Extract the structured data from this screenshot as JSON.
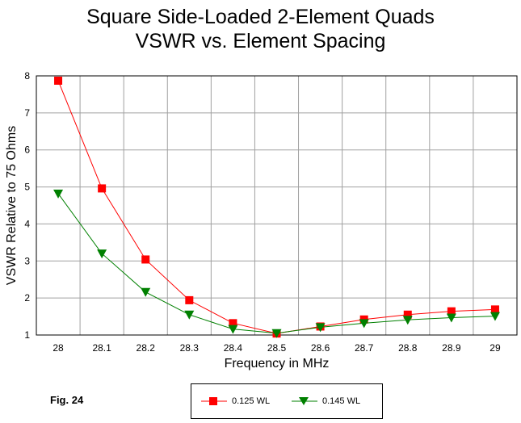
{
  "title": "Square Side-Loaded 2-Element Quads",
  "subtitle": "VSWR vs. Element Spacing",
  "figure_label": "Fig. 24",
  "chart_data": {
    "type": "line",
    "title": "Square Side-Loaded 2-Element Quads",
    "subtitle": "VSWR vs. Element Spacing",
    "xlabel": "Frequency in MHz",
    "ylabel": "VSWR Relative to 75 Ohms",
    "categories": [
      "28",
      "28.1",
      "28.2",
      "28.3",
      "28.4",
      "28.5",
      "28.6",
      "28.7",
      "28.8",
      "28.9",
      "29"
    ],
    "ylim": [
      1,
      8
    ],
    "yticks": [
      "1",
      "2",
      "3",
      "4",
      "5",
      "6",
      "7",
      "8"
    ],
    "grid": true,
    "legend_position": "bottom",
    "series": [
      {
        "name": "0.125 WL",
        "color": "#ff0000",
        "marker": "square",
        "values": [
          7.87,
          4.96,
          3.04,
          1.94,
          1.32,
          1.04,
          1.23,
          1.42,
          1.55,
          1.64,
          1.69
        ]
      },
      {
        "name": "0.145 WL",
        "color": "#008000",
        "marker": "triangle-down",
        "values": [
          4.82,
          3.2,
          2.16,
          1.55,
          1.16,
          1.05,
          1.21,
          1.32,
          1.41,
          1.47,
          1.51
        ]
      }
    ]
  }
}
